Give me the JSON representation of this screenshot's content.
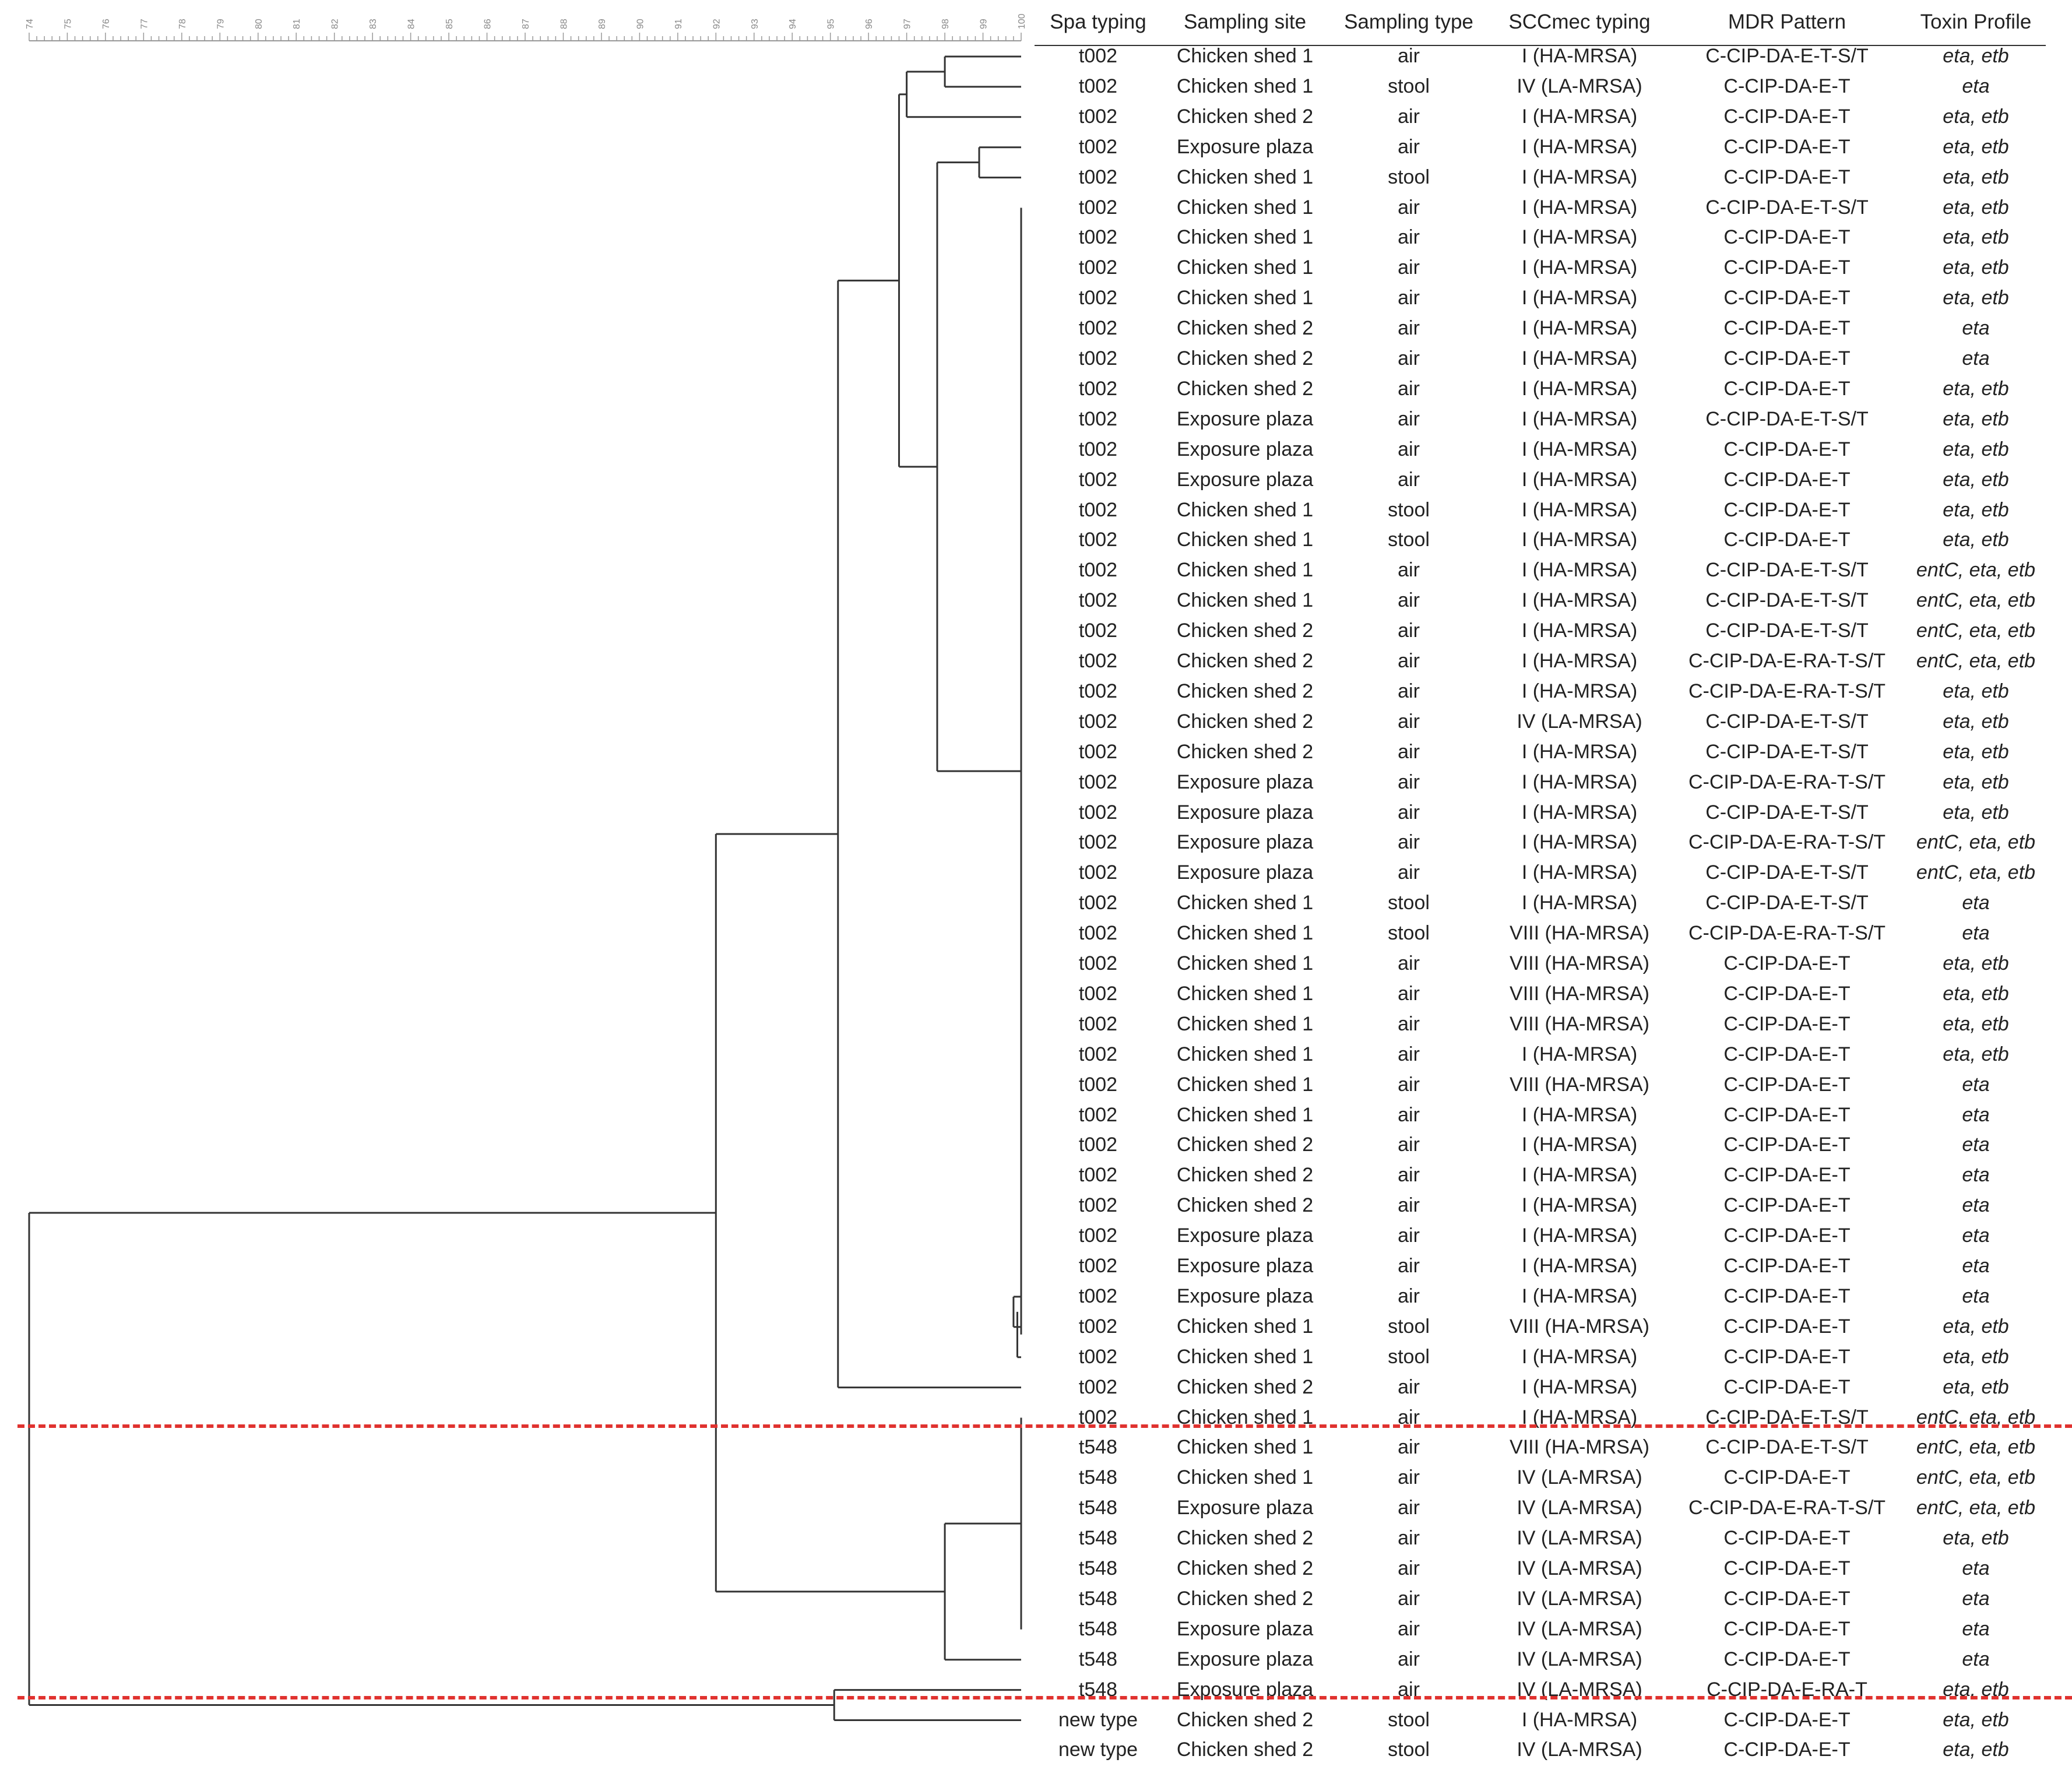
{
  "scale": {
    "min": 74,
    "max": 100,
    "labels": [
      "74",
      "75",
      "76",
      "77",
      "78",
      "79",
      "80",
      "81",
      "82",
      "83",
      "84",
      "85",
      "86",
      "87",
      "88",
      "89",
      "90",
      "91",
      "92",
      "93",
      "94",
      "95",
      "96",
      "97",
      "98",
      "99",
      "100"
    ]
  },
  "columns": [
    "Spa typing",
    "Sampling site",
    "Sampling type",
    "SCCmec typing",
    "MDR Pattern",
    "Toxin Profile"
  ],
  "rows": [
    [
      "t002",
      "Chicken shed 1",
      "air",
      "I (HA-MRSA)",
      "C-CIP-DA-E-T-S/T",
      "eta, etb"
    ],
    [
      "t002",
      "Chicken shed 1",
      "stool",
      "IV (LA-MRSA)",
      "C-CIP-DA-E-T",
      "eta"
    ],
    [
      "t002",
      "Chicken shed 2",
      "air",
      "I (HA-MRSA)",
      "C-CIP-DA-E-T",
      "eta, etb"
    ],
    [
      "t002",
      "Exposure plaza",
      "air",
      "I (HA-MRSA)",
      "C-CIP-DA-E-T",
      "eta, etb"
    ],
    [
      "t002",
      "Chicken shed 1",
      "stool",
      "I (HA-MRSA)",
      "C-CIP-DA-E-T",
      "eta, etb"
    ],
    [
      "t002",
      "Chicken shed 1",
      "air",
      "I (HA-MRSA)",
      "C-CIP-DA-E-T-S/T",
      "eta, etb"
    ],
    [
      "t002",
      "Chicken shed 1",
      "air",
      "I (HA-MRSA)",
      "C-CIP-DA-E-T",
      "eta, etb"
    ],
    [
      "t002",
      "Chicken shed 1",
      "air",
      "I (HA-MRSA)",
      "C-CIP-DA-E-T",
      "eta, etb"
    ],
    [
      "t002",
      "Chicken shed 1",
      "air",
      "I (HA-MRSA)",
      "C-CIP-DA-E-T",
      "eta, etb"
    ],
    [
      "t002",
      "Chicken shed 2",
      "air",
      "I (HA-MRSA)",
      "C-CIP-DA-E-T",
      "eta"
    ],
    [
      "t002",
      "Chicken shed 2",
      "air",
      "I (HA-MRSA)",
      "C-CIP-DA-E-T",
      "eta"
    ],
    [
      "t002",
      "Chicken shed 2",
      "air",
      "I (HA-MRSA)",
      "C-CIP-DA-E-T",
      "eta, etb"
    ],
    [
      "t002",
      "Exposure plaza",
      "air",
      "I (HA-MRSA)",
      "C-CIP-DA-E-T-S/T",
      "eta, etb"
    ],
    [
      "t002",
      "Exposure plaza",
      "air",
      "I (HA-MRSA)",
      "C-CIP-DA-E-T",
      "eta, etb"
    ],
    [
      "t002",
      "Exposure plaza",
      "air",
      "I (HA-MRSA)",
      "C-CIP-DA-E-T",
      "eta, etb"
    ],
    [
      "t002",
      "Chicken shed 1",
      "stool",
      "I (HA-MRSA)",
      "C-CIP-DA-E-T",
      "eta, etb"
    ],
    [
      "t002",
      "Chicken shed 1",
      "stool",
      "I (HA-MRSA)",
      "C-CIP-DA-E-T",
      "eta, etb"
    ],
    [
      "t002",
      "Chicken shed 1",
      "air",
      "I (HA-MRSA)",
      "C-CIP-DA-E-T-S/T",
      "entC, eta, etb"
    ],
    [
      "t002",
      "Chicken shed 1",
      "air",
      "I (HA-MRSA)",
      "C-CIP-DA-E-T-S/T",
      "entC, eta, etb"
    ],
    [
      "t002",
      "Chicken shed 2",
      "air",
      "I (HA-MRSA)",
      "C-CIP-DA-E-T-S/T",
      "entC, eta, etb"
    ],
    [
      "t002",
      "Chicken shed 2",
      "air",
      "I (HA-MRSA)",
      "C-CIP-DA-E-RA-T-S/T",
      "entC, eta, etb"
    ],
    [
      "t002",
      "Chicken shed 2",
      "air",
      "I (HA-MRSA)",
      "C-CIP-DA-E-RA-T-S/T",
      "eta, etb"
    ],
    [
      "t002",
      "Chicken shed 2",
      "air",
      "IV (LA-MRSA)",
      "C-CIP-DA-E-T-S/T",
      "eta, etb"
    ],
    [
      "t002",
      "Chicken shed 2",
      "air",
      "I (HA-MRSA)",
      "C-CIP-DA-E-T-S/T",
      "eta, etb"
    ],
    [
      "t002",
      "Exposure plaza",
      "air",
      "I (HA-MRSA)",
      "C-CIP-DA-E-RA-T-S/T",
      "eta, etb"
    ],
    [
      "t002",
      "Exposure plaza",
      "air",
      "I (HA-MRSA)",
      "C-CIP-DA-E-T-S/T",
      "eta, etb"
    ],
    [
      "t002",
      "Exposure plaza",
      "air",
      "I (HA-MRSA)",
      "C-CIP-DA-E-RA-T-S/T",
      "entC, eta, etb"
    ],
    [
      "t002",
      "Exposure plaza",
      "air",
      "I (HA-MRSA)",
      "C-CIP-DA-E-T-S/T",
      "entC, eta, etb"
    ],
    [
      "t002",
      "Chicken shed 1",
      "stool",
      "I (HA-MRSA)",
      "C-CIP-DA-E-T-S/T",
      "eta"
    ],
    [
      "t002",
      "Chicken shed 1",
      "stool",
      "VIII (HA-MRSA)",
      "C-CIP-DA-E-RA-T-S/T",
      "eta"
    ],
    [
      "t002",
      "Chicken shed 1",
      "air",
      "VIII (HA-MRSA)",
      "C-CIP-DA-E-T",
      "eta, etb"
    ],
    [
      "t002",
      "Chicken shed 1",
      "air",
      "VIII (HA-MRSA)",
      "C-CIP-DA-E-T",
      "eta, etb"
    ],
    [
      "t002",
      "Chicken shed 1",
      "air",
      "VIII (HA-MRSA)",
      "C-CIP-DA-E-T",
      "eta, etb"
    ],
    [
      "t002",
      "Chicken shed 1",
      "air",
      "I (HA-MRSA)",
      "C-CIP-DA-E-T",
      "eta, etb"
    ],
    [
      "t002",
      "Chicken shed 1",
      "air",
      "VIII (HA-MRSA)",
      "C-CIP-DA-E-T",
      "eta"
    ],
    [
      "t002",
      "Chicken shed 1",
      "air",
      "I (HA-MRSA)",
      "C-CIP-DA-E-T",
      "eta"
    ],
    [
      "t002",
      "Chicken shed 2",
      "air",
      "I (HA-MRSA)",
      "C-CIP-DA-E-T",
      "eta"
    ],
    [
      "t002",
      "Chicken shed 2",
      "air",
      "I (HA-MRSA)",
      "C-CIP-DA-E-T",
      "eta"
    ],
    [
      "t002",
      "Chicken shed 2",
      "air",
      "I (HA-MRSA)",
      "C-CIP-DA-E-T",
      "eta"
    ],
    [
      "t002",
      "Exposure plaza",
      "air",
      "I (HA-MRSA)",
      "C-CIP-DA-E-T",
      "eta"
    ],
    [
      "t002",
      "Exposure plaza",
      "air",
      "I (HA-MRSA)",
      "C-CIP-DA-E-T",
      "eta"
    ],
    [
      "t002",
      "Exposure plaza",
      "air",
      "I (HA-MRSA)",
      "C-CIP-DA-E-T",
      "eta"
    ],
    [
      "t002",
      "Chicken shed 1",
      "stool",
      "VIII (HA-MRSA)",
      "C-CIP-DA-E-T",
      "eta, etb"
    ],
    [
      "t002",
      "Chicken shed 1",
      "stool",
      "I (HA-MRSA)",
      "C-CIP-DA-E-T",
      "eta, etb"
    ],
    [
      "t002",
      "Chicken shed 2",
      "air",
      "I (HA-MRSA)",
      "C-CIP-DA-E-T",
      "eta, etb"
    ],
    [
      "t002",
      "Chicken shed 1",
      "air",
      "I (HA-MRSA)",
      "C-CIP-DA-E-T-S/T",
      "entC, eta, etb"
    ],
    [
      "t548",
      "Chicken shed 1",
      "air",
      "VIII (HA-MRSA)",
      "C-CIP-DA-E-T-S/T",
      "entC, eta, etb"
    ],
    [
      "t548",
      "Chicken shed 1",
      "air",
      "IV (LA-MRSA)",
      "C-CIP-DA-E-T",
      "entC, eta, etb"
    ],
    [
      "t548",
      "Exposure plaza",
      "air",
      "IV (LA-MRSA)",
      "C-CIP-DA-E-RA-T-S/T",
      "entC, eta, etb"
    ],
    [
      "t548",
      "Chicken shed 2",
      "air",
      "IV (LA-MRSA)",
      "C-CIP-DA-E-T",
      "eta, etb"
    ],
    [
      "t548",
      "Chicken shed 2",
      "air",
      "IV (LA-MRSA)",
      "C-CIP-DA-E-T",
      "eta"
    ],
    [
      "t548",
      "Chicken shed 2",
      "air",
      "IV (LA-MRSA)",
      "C-CIP-DA-E-T",
      "eta"
    ],
    [
      "t548",
      "Exposure plaza",
      "air",
      "IV (LA-MRSA)",
      "C-CIP-DA-E-T",
      "eta"
    ],
    [
      "t548",
      "Exposure plaza",
      "air",
      "IV (LA-MRSA)",
      "C-CIP-DA-E-T",
      "eta"
    ],
    [
      "t548",
      "Exposure plaza",
      "air",
      "IV (LA-MRSA)",
      "C-CIP-DA-E-RA-T",
      "eta, etb"
    ],
    [
      "new type",
      "Chicken shed 2",
      "stool",
      "I (HA-MRSA)",
      "C-CIP-DA-E-T",
      "eta, etb"
    ],
    [
      "new type",
      "Chicken shed 2",
      "stool",
      "IV (LA-MRSA)",
      "C-CIP-DA-E-T",
      "eta, etb"
    ]
  ],
  "tree": {
    "stroke": "#333333",
    "nodes": [
      {
        "sim": 98.0,
        "children": [
          0,
          1
        ]
      },
      {
        "sim": 97.0,
        "children": [
          "n0",
          2
        ]
      },
      {
        "sim": 98.9,
        "children": [
          3,
          4
        ]
      },
      {
        "sim": 99.8,
        "children": [
          41,
          42
        ]
      },
      {
        "sim": 99.9,
        "children": [
          "n3",
          43
        ]
      },
      {
        "sim": 100,
        "children": [
          5,
          6,
          7,
          8,
          9,
          10,
          11,
          12,
          13,
          14,
          15,
          16,
          17,
          18,
          19,
          20,
          21,
          22,
          23,
          24,
          25,
          26,
          27,
          28,
          29,
          30,
          31,
          32,
          33,
          34,
          35,
          36,
          37,
          38,
          39,
          40,
          "n4"
        ]
      },
      {
        "sim": 97.8,
        "children": [
          "n2",
          "n5"
        ]
      },
      {
        "sim": 96.8,
        "children": [
          "n1",
          "n6"
        ]
      },
      {
        "sim": 95.2,
        "children": [
          "n7",
          44
        ]
      },
      {
        "sim": 100,
        "children": [
          45,
          46,
          47,
          48,
          49,
          50,
          51,
          52
        ]
      },
      {
        "sim": 98.0,
        "children": [
          "n9",
          53
        ]
      },
      {
        "sim": 92.0,
        "children": [
          "n8",
          "n10"
        ]
      },
      {
        "sim": 95.1,
        "children": [
          54,
          55
        ]
      },
      {
        "sim": 74.0,
        "children": [
          "n11",
          "n12"
        ]
      }
    ],
    "root": "n13"
  },
  "colors": {
    "divider": "#e0322f",
    "line": "#333333"
  }
}
